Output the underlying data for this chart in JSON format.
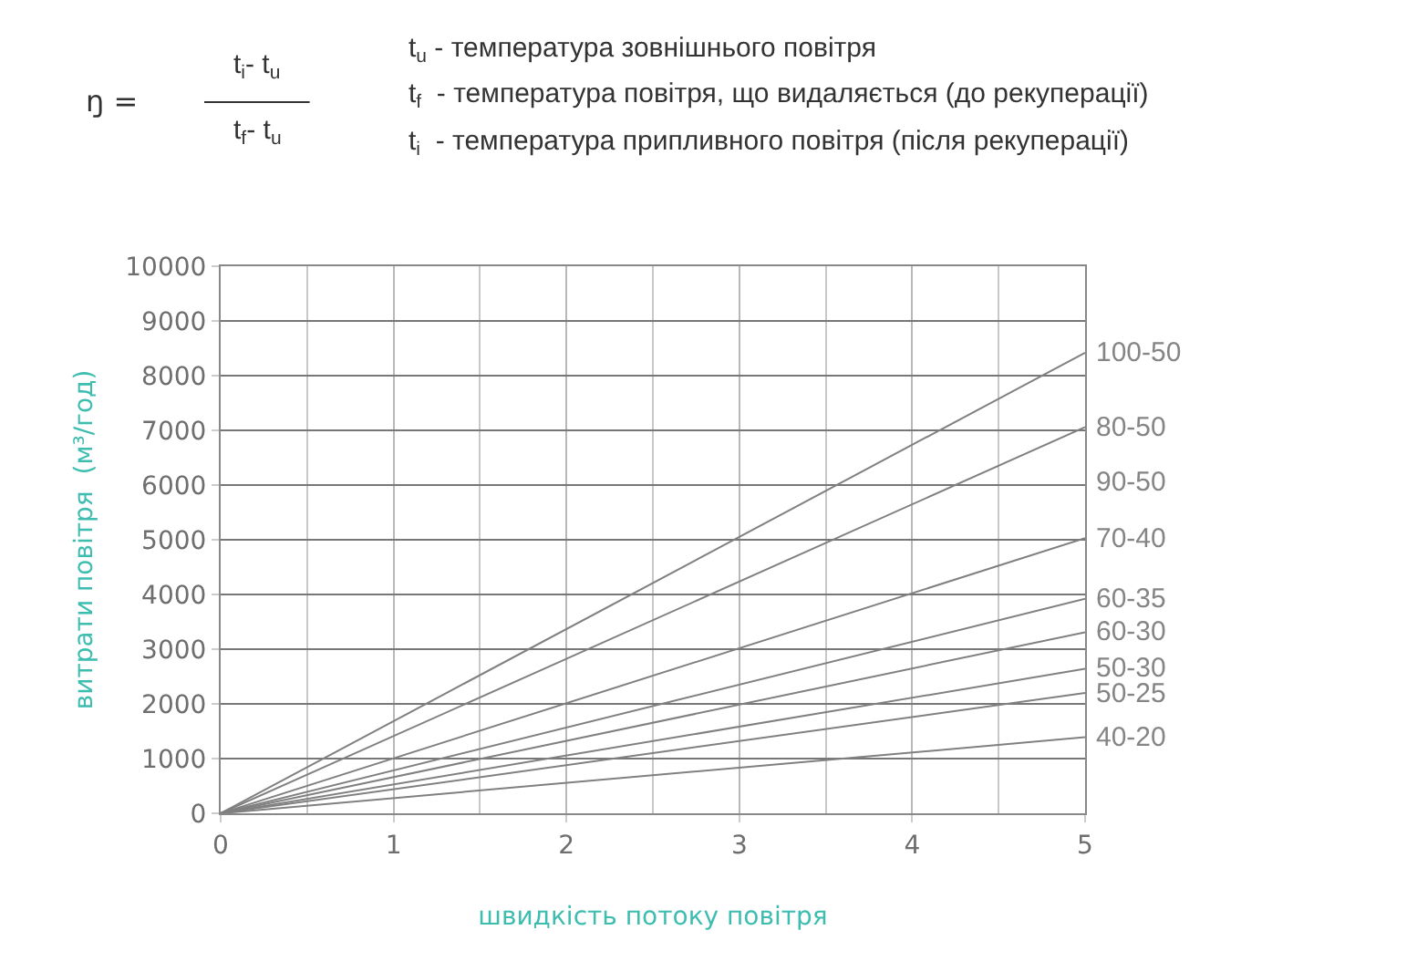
{
  "chart_data": {
    "type": "line",
    "xlabel": "швидкість потоку повітря",
    "ylabel": "витрати повітря  (м³/год)",
    "x": [
      0,
      5
    ],
    "xlim": [
      0,
      5
    ],
    "xticks": [
      0,
      1,
      2,
      3,
      4,
      5
    ],
    "ylim": [
      0,
      10000
    ],
    "yticks": [
      0,
      1000,
      2000,
      3000,
      4000,
      5000,
      6000,
      7000,
      8000,
      9000,
      10000
    ],
    "grid": true,
    "legend": false,
    "marker": "none",
    "line_style": "solid",
    "series": [
      {
        "name": "100-50",
        "color": "#808080",
        "values": [
          0,
          8420
        ]
      },
      {
        "name": "80-50",
        "color": "#808080",
        "values": [
          0,
          7060
        ]
      },
      {
        "name": "70-40",
        "color": "#808080",
        "values": [
          0,
          5030
        ]
      },
      {
        "name": "60-35",
        "color": "#808080",
        "values": [
          0,
          3920
        ]
      },
      {
        "name": "60-30",
        "color": "#808080",
        "values": [
          0,
          3310
        ]
      },
      {
        "name": "50-30",
        "color": "#808080",
        "values": [
          0,
          2640
        ]
      },
      {
        "name": "50-25",
        "color": "#808080",
        "values": [
          0,
          2200
        ]
      },
      {
        "name": "40-20",
        "color": "#808080",
        "values": [
          0,
          1390
        ]
      }
    ],
    "annotations": [
      "90-50",
      "ŋ =",
      "t$_{i}$- t$_{u}$",
      "t$_{f}$- t$_{u}$",
      "t$_{u}$ - температура зовнішнього повітря",
      "t$_{f}$  - температура повітря, що видаляється (до рекуперації)",
      "t$_{i}$  - температура припливного повітря (після рекуперації)"
    ]
  }
}
